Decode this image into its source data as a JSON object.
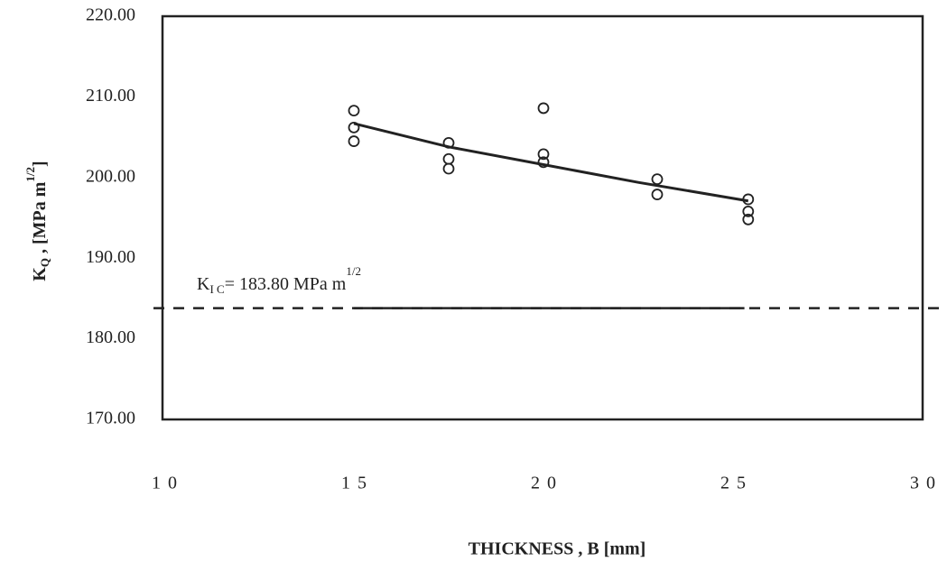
{
  "chart_data": {
    "type": "scatter",
    "x_label": "THICKNESS , B [mm]",
    "y_label": {
      "main": "K",
      "sub": "Q",
      "rest": " , [MPa m",
      "sup": "1/2",
      "end": "]"
    },
    "xlim": [
      10,
      30
    ],
    "xticks": [
      10,
      15,
      20,
      25,
      30
    ],
    "ylim": [
      170,
      220
    ],
    "yticks": [
      {
        "value": 170,
        "label": "170.00"
      },
      {
        "value": 180,
        "label": "180.00"
      },
      {
        "value": 190,
        "label": "190.00"
      },
      {
        "value": 200,
        "label": "200.00"
      },
      {
        "value": 210,
        "label": "210.00"
      },
      {
        "value": 220,
        "label": "220.00"
      }
    ],
    "series": [
      {
        "color": "#222222",
        "x": [
          15,
          15,
          15,
          17.5,
          17.5,
          17.5,
          20,
          20,
          20,
          23,
          23,
          25.4,
          25.4,
          25.4
        ],
        "values": [
          208.3,
          206.2,
          204.5,
          204.3,
          202.3,
          201.1,
          208.6,
          202.9,
          201.9,
          199.8,
          197.9,
          197.3,
          195.8,
          194.8
        ]
      }
    ],
    "trend": {
      "x": [
        15,
        17.5,
        20,
        22.5,
        25.4
      ],
      "values": [
        206.7,
        203.8,
        201.6,
        199.4,
        197.1
      ]
    },
    "kic_line": {
      "value": 183.8,
      "x_range": [
        15,
        25.3
      ]
    },
    "annotation": {
      "main": "K",
      "sub": "I C",
      "text": "= 183.80 MPa m",
      "sup": "1/2"
    }
  }
}
